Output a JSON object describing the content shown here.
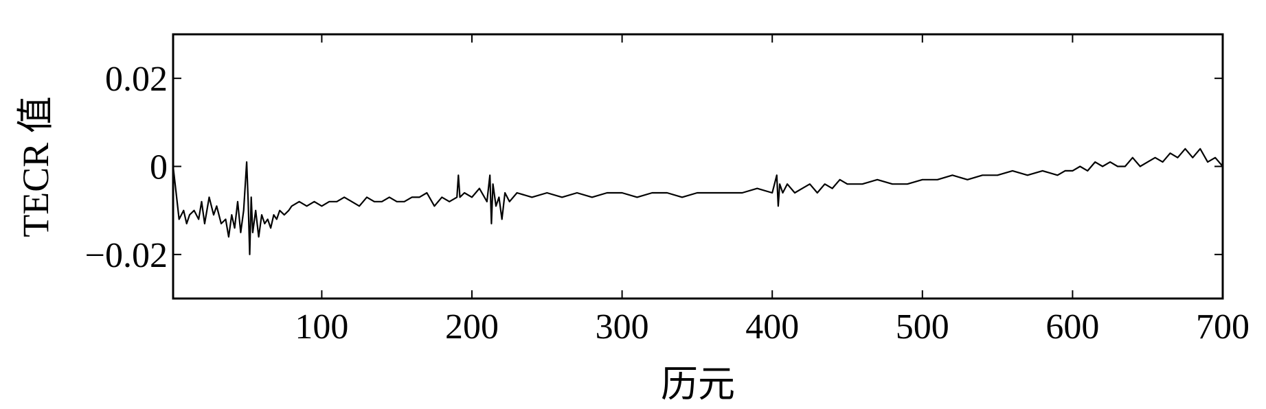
{
  "chart_data": {
    "type": "line",
    "title": "",
    "xlabel": "历元",
    "ylabel": "TECR 值",
    "xlim": [
      1,
      700
    ],
    "ylim": [
      -0.03,
      0.03
    ],
    "x_ticks": [
      100,
      200,
      300,
      400,
      500,
      600,
      700
    ],
    "x_tick_labels": [
      "100",
      "200",
      "300",
      "400",
      "500",
      "600",
      "700"
    ],
    "y_ticks": [
      -0.02,
      0,
      0.02
    ],
    "y_tick_labels": [
      "−0.02",
      "0",
      "0.02"
    ],
    "grid": false,
    "legend": "none",
    "line_color": "#000000",
    "series": [
      {
        "x": [
          1,
          3,
          5,
          8,
          10,
          12,
          15,
          18,
          20,
          22,
          25,
          28,
          30,
          33,
          36,
          38,
          40,
          42,
          44,
          46,
          48,
          50,
          51,
          52,
          53,
          54,
          56,
          58,
          60,
          62,
          64,
          66,
          68,
          70,
          72,
          75,
          78,
          80,
          85,
          90,
          95,
          100,
          105,
          110,
          115,
          120,
          125,
          130,
          135,
          140,
          145,
          150,
          155,
          160,
          165,
          170,
          175,
          180,
          185,
          190,
          191,
          192,
          195,
          200,
          205,
          210,
          212,
          213,
          214,
          216,
          218,
          220,
          222,
          225,
          230,
          240,
          250,
          260,
          270,
          280,
          290,
          300,
          310,
          320,
          330,
          340,
          350,
          360,
          370,
          380,
          390,
          400,
          403,
          404,
          405,
          407,
          410,
          415,
          420,
          425,
          430,
          435,
          440,
          445,
          450,
          460,
          470,
          480,
          490,
          500,
          510,
          520,
          530,
          540,
          550,
          560,
          570,
          580,
          590,
          595,
          600,
          605,
          610,
          615,
          620,
          625,
          630,
          635,
          640,
          645,
          650,
          655,
          660,
          665,
          670,
          675,
          680,
          685,
          690,
          695,
          700
        ],
        "y": [
          0.0,
          -0.006,
          -0.012,
          -0.01,
          -0.013,
          -0.011,
          -0.01,
          -0.012,
          -0.008,
          -0.013,
          -0.007,
          -0.011,
          -0.009,
          -0.013,
          -0.012,
          -0.016,
          -0.011,
          -0.014,
          -0.008,
          -0.015,
          -0.01,
          0.001,
          -0.008,
          -0.02,
          -0.007,
          -0.015,
          -0.01,
          -0.016,
          -0.011,
          -0.013,
          -0.012,
          -0.014,
          -0.011,
          -0.012,
          -0.01,
          -0.011,
          -0.01,
          -0.009,
          -0.008,
          -0.009,
          -0.008,
          -0.009,
          -0.008,
          -0.008,
          -0.007,
          -0.008,
          -0.009,
          -0.007,
          -0.008,
          -0.008,
          -0.007,
          -0.008,
          -0.008,
          -0.007,
          -0.007,
          -0.006,
          -0.009,
          -0.007,
          -0.008,
          -0.007,
          -0.002,
          -0.007,
          -0.006,
          -0.007,
          -0.005,
          -0.008,
          -0.002,
          -0.013,
          -0.004,
          -0.009,
          -0.007,
          -0.012,
          -0.006,
          -0.008,
          -0.006,
          -0.007,
          -0.006,
          -0.007,
          -0.006,
          -0.007,
          -0.006,
          -0.006,
          -0.007,
          -0.006,
          -0.006,
          -0.007,
          -0.006,
          -0.006,
          -0.006,
          -0.006,
          -0.005,
          -0.006,
          -0.002,
          -0.009,
          -0.004,
          -0.006,
          -0.004,
          -0.006,
          -0.005,
          -0.004,
          -0.006,
          -0.004,
          -0.005,
          -0.003,
          -0.004,
          -0.004,
          -0.003,
          -0.004,
          -0.004,
          -0.003,
          -0.003,
          -0.002,
          -0.003,
          -0.002,
          -0.002,
          -0.001,
          -0.002,
          -0.001,
          -0.002,
          -0.001,
          -0.001,
          0.0,
          -0.001,
          0.001,
          0.0,
          0.001,
          0.0,
          0.0,
          0.002,
          0.0,
          0.001,
          0.002,
          0.001,
          0.003,
          0.002,
          0.004,
          0.002,
          0.004,
          0.001,
          0.002,
          0.0
        ]
      }
    ]
  }
}
